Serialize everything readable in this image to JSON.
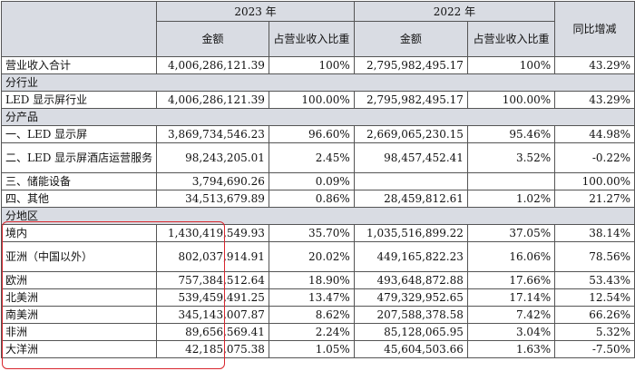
{
  "header": {
    "year_2023": "2023 年",
    "year_2022": "2022 年",
    "amount": "金额",
    "share": "占营业收入比重",
    "yoy": "同比增减"
  },
  "total": {
    "label": "营业收入合计",
    "amt23": "4,006,286,121.39",
    "pct23": "100%",
    "amt22": "2,795,982,495.17",
    "pct22": "100%",
    "yoy": "43.29%"
  },
  "sections": {
    "industry": "分行业",
    "product": "分产品",
    "region": "分地区"
  },
  "industry_rows": [
    {
      "label": "LED 显示屏行业",
      "amt23": "4,006,286,121.39",
      "pct23": "100.00%",
      "amt22": "2,795,982,495.17",
      "pct22": "100.00%",
      "yoy": "43.29%"
    }
  ],
  "product_rows": [
    {
      "label": "一、LED 显示屏",
      "amt23": "3,869,734,546.23",
      "pct23": "96.60%",
      "amt22": "2,669,065,230.15",
      "pct22": "95.46%",
      "yoy": "44.98%"
    },
    {
      "label": "二、LED 显示屏酒店运营服务",
      "amt23": "98,243,205.01",
      "pct23": "2.45%",
      "amt22": "98,457,452.41",
      "pct22": "3.52%",
      "yoy": "-0.22%"
    },
    {
      "label": "三、储能设备",
      "amt23": "3,794,690.26",
      "pct23": "0.09%",
      "amt22": "",
      "pct22": "",
      "yoy": "100.00%"
    },
    {
      "label": "四、其他",
      "amt23": "34,513,679.89",
      "pct23": "0.86%",
      "amt22": "28,459,812.61",
      "pct22": "1.02%",
      "yoy": "21.27%"
    }
  ],
  "region_rows": [
    {
      "label": "境内",
      "amt23": "1,430,419,549.93",
      "pct23": "35.70%",
      "amt22": "1,035,516,899.22",
      "pct22": "37.05%",
      "yoy": "38.14%"
    },
    {
      "label": "亚洲（中国以外）",
      "amt23": "802,037,914.91",
      "pct23": "20.02%",
      "amt22": "449,165,822.23",
      "pct22": "16.06%",
      "yoy": "78.56%"
    },
    {
      "label": "欧洲",
      "amt23": "757,384,512.64",
      "pct23": "18.90%",
      "amt22": "493,648,872.88",
      "pct22": "17.66%",
      "yoy": "53.43%"
    },
    {
      "label": "北美洲",
      "amt23": "539,459,491.25",
      "pct23": "13.47%",
      "amt22": "479,329,952.65",
      "pct22": "17.14%",
      "yoy": "12.54%"
    },
    {
      "label": "南美洲",
      "amt23": "345,143,007.87",
      "pct23": "8.62%",
      "amt22": "207,588,378.58",
      "pct22": "7.42%",
      "yoy": "66.26%"
    },
    {
      "label": "非洲",
      "amt23": "89,656,569.41",
      "pct23": "2.24%",
      "amt22": "85,128,065.95",
      "pct22": "3.04%",
      "yoy": "5.32%"
    },
    {
      "label": "大洋洲",
      "amt23": "42,185,075.38",
      "pct23": "1.05%",
      "amt22": "45,604,503.66",
      "pct22": "1.63%",
      "yoy": "-7.50%"
    }
  ],
  "colors": {
    "header_bg": "#d9dce3",
    "highlight": "#d8262d",
    "border": "#555555"
  }
}
